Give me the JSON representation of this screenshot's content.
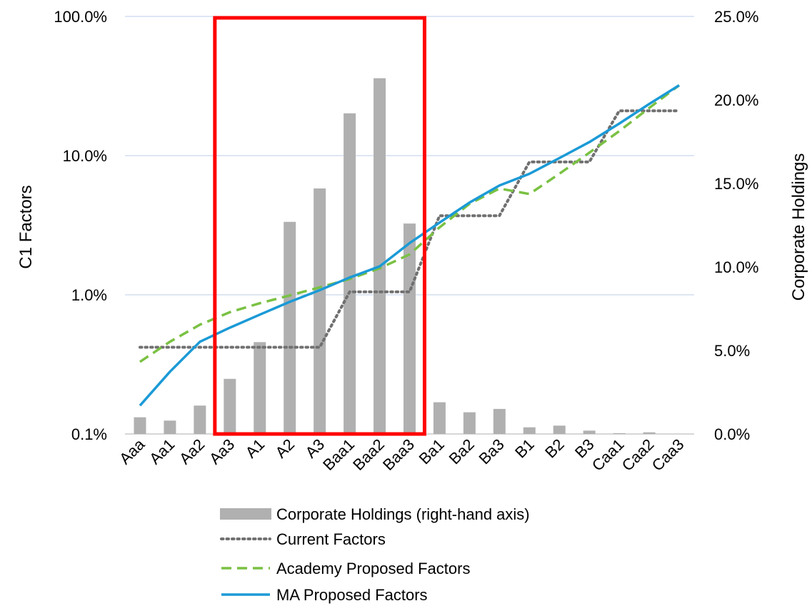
{
  "chart_data": {
    "type": "bar",
    "categories": [
      "Aaa",
      "Aa1",
      "Aa2",
      "Aa3",
      "A1",
      "A2",
      "A3",
      "Baa1",
      "Baa2",
      "Baa3",
      "Ba1",
      "Ba2",
      "Ba3",
      "B1",
      "B2",
      "B3",
      "Caa1",
      "Caa2",
      "Caa3"
    ],
    "y_left": {
      "label": "C1 Factors",
      "scale": "log",
      "lim": [
        0.001,
        1.0
      ],
      "ticks": [
        0.001,
        0.01,
        0.1,
        1.0
      ],
      "tick_labels": [
        "0.1%",
        "1.0%",
        "10.0%",
        "100.0%"
      ]
    },
    "y_right": {
      "label": "Corporate Holdings",
      "scale": "linear",
      "lim": [
        0.0,
        0.25
      ],
      "ticks": [
        0.0,
        0.05,
        0.1,
        0.15,
        0.2,
        0.25
      ],
      "tick_labels": [
        "0.0%",
        "5.0%",
        "10.0%",
        "15.0%",
        "20.0%",
        "25.0%"
      ]
    },
    "grid": "horizontal",
    "legend_position": "bottom",
    "series": [
      {
        "name": "Corporate Holdings (right-hand axis)",
        "kind": "bar",
        "axis": "right",
        "color": "#b0b0b0",
        "values": [
          0.01,
          0.008,
          0.017,
          0.033,
          0.055,
          0.127,
          0.147,
          0.192,
          0.213,
          0.126,
          0.019,
          0.013,
          0.015,
          0.004,
          0.005,
          0.002,
          0.0005,
          0.001,
          0.0
        ]
      },
      {
        "name": "Current Factors",
        "kind": "line",
        "style": "dotted",
        "axis": "left",
        "color": "#707070",
        "values": [
          0.0042,
          0.0042,
          0.0042,
          0.0042,
          0.0042,
          0.0042,
          0.0042,
          0.0105,
          0.0105,
          0.0105,
          0.037,
          0.037,
          0.037,
          0.09,
          0.09,
          0.09,
          0.21,
          0.21,
          0.21
        ]
      },
      {
        "name": "Academy Proposed Factors",
        "kind": "line",
        "style": "dashed",
        "axis": "left",
        "color": "#7ac143",
        "values": [
          0.0033,
          0.0046,
          0.0061,
          0.0075,
          0.0087,
          0.0099,
          0.0113,
          0.013,
          0.0155,
          0.0195,
          0.0305,
          0.045,
          0.058,
          0.053,
          0.074,
          0.105,
          0.15,
          0.22,
          0.32
        ]
      },
      {
        "name": "MA Proposed Factors",
        "kind": "line",
        "style": "solid",
        "axis": "left",
        "color": "#1b9ad6",
        "values": [
          0.0016,
          0.0028,
          0.0046,
          0.0058,
          0.0072,
          0.0089,
          0.0108,
          0.0133,
          0.016,
          0.0235,
          0.033,
          0.046,
          0.061,
          0.074,
          0.096,
          0.125,
          0.17,
          0.235,
          0.32
        ]
      }
    ],
    "annotation": {
      "type": "highlight-box",
      "color": "#ff0000",
      "from_category": "Aa3",
      "to_category": "Baa3"
    }
  }
}
